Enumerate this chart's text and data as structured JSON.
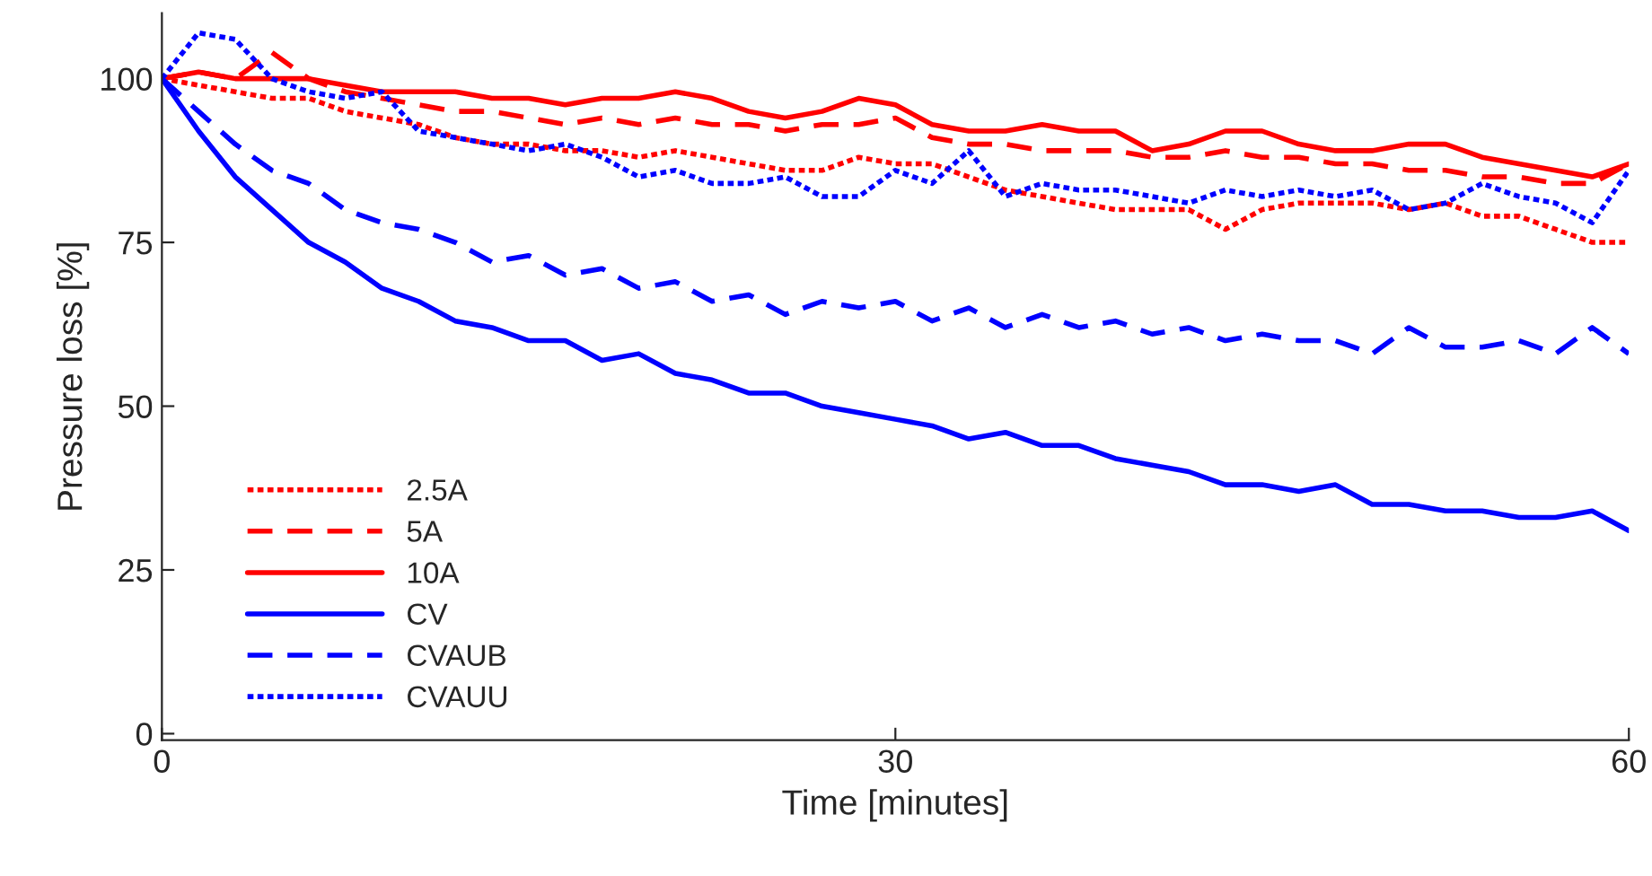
{
  "chart_data": {
    "type": "line",
    "xlabel": "Time [minutes]",
    "ylabel": "Pressure loss [%]",
    "x": [
      0,
      1.5,
      3,
      4.5,
      6,
      7.5,
      9,
      10.5,
      12,
      13.5,
      15,
      16.5,
      18,
      19.5,
      21,
      22.5,
      24,
      25.5,
      27,
      28.5,
      30,
      31.5,
      33,
      34.5,
      36,
      37.5,
      39,
      40.5,
      42,
      43.5,
      45,
      46.5,
      48,
      49.5,
      51,
      52.5,
      54,
      55.5,
      57,
      58.5,
      60
    ],
    "xlim": [
      0,
      60
    ],
    "xticks": [
      0,
      30,
      60
    ],
    "ylim": [
      -1,
      110
    ],
    "yticks": [
      0,
      25,
      50,
      75,
      100
    ],
    "grid": false,
    "legend": "bottom left",
    "marker": "none",
    "series": [
      {
        "name": "2.5A",
        "color": "#ff0000",
        "line_style": "dotted",
        "values": [
          100,
          99,
          98,
          97,
          97,
          95,
          94,
          93,
          91,
          90,
          90,
          89,
          89,
          88,
          89,
          88,
          87,
          86,
          86,
          88,
          87,
          87,
          85,
          83,
          82,
          81,
          80,
          80,
          80,
          77,
          80,
          81,
          81,
          81,
          80,
          81,
          79,
          79,
          77,
          75,
          75
        ]
      },
      {
        "name": "5A",
        "color": "#ff0000",
        "line_style": "dashed",
        "values": [
          100,
          101,
          100,
          104,
          100,
          98,
          97,
          96,
          95,
          95,
          94,
          93,
          94,
          93,
          94,
          93,
          93,
          92,
          93,
          93,
          94,
          91,
          90,
          90,
          89,
          89,
          89,
          88,
          88,
          89,
          88,
          88,
          87,
          87,
          86,
          86,
          85,
          85,
          84,
          84,
          87
        ]
      },
      {
        "name": "10A",
        "color": "#ff0000",
        "line_style": "solid",
        "values": [
          100,
          101,
          100,
          100,
          100,
          99,
          98,
          98,
          98,
          97,
          97,
          96,
          97,
          97,
          98,
          97,
          95,
          94,
          95,
          97,
          96,
          93,
          92,
          92,
          93,
          92,
          92,
          89,
          90,
          92,
          92,
          90,
          89,
          89,
          90,
          90,
          88,
          87,
          86,
          85,
          87
        ]
      },
      {
        "name": "CV",
        "color": "#0000ff",
        "line_style": "solid",
        "values": [
          100,
          92,
          85,
          80,
          75,
          72,
          68,
          66,
          63,
          62,
          60,
          60,
          57,
          58,
          55,
          54,
          52,
          52,
          50,
          49,
          48,
          47,
          45,
          46,
          44,
          44,
          42,
          41,
          40,
          38,
          38,
          37,
          38,
          35,
          35,
          34,
          34,
          33,
          33,
          34,
          31
        ]
      },
      {
        "name": "CVAUB",
        "color": "#0000ff",
        "line_style": "dashed",
        "values": [
          100,
          95,
          90,
          86,
          84,
          80,
          78,
          77,
          75,
          72,
          73,
          70,
          71,
          68,
          69,
          66,
          67,
          64,
          66,
          65,
          66,
          63,
          65,
          62,
          64,
          62,
          63,
          61,
          62,
          60,
          61,
          60,
          60,
          58,
          62,
          59,
          59,
          60,
          58,
          62,
          58
        ]
      },
      {
        "name": "CVAUU",
        "color": "#0000ff",
        "line_style": "dotted",
        "values": [
          100,
          107,
          106,
          100,
          98,
          97,
          98,
          92,
          91,
          90,
          89,
          90,
          88,
          85,
          86,
          84,
          84,
          85,
          82,
          82,
          86,
          84,
          89,
          82,
          84,
          83,
          83,
          82,
          81,
          83,
          82,
          83,
          82,
          83,
          80,
          81,
          84,
          82,
          81,
          78,
          86
        ]
      }
    ]
  }
}
